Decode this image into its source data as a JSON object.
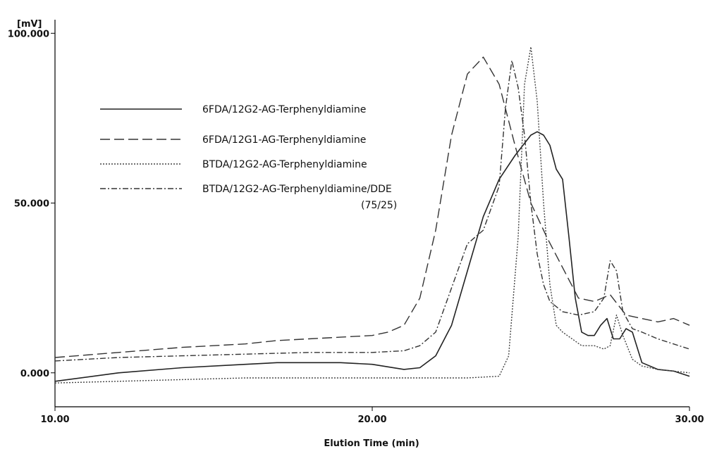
{
  "chart_data": {
    "type": "line",
    "title": "",
    "ylabel": "[mV]",
    "xlabel": "Elution Time (min)",
    "xlim": [
      10,
      30
    ],
    "ylim": [
      -10,
      104
    ],
    "x_ticks": [
      {
        "value": 10,
        "label": "10.00"
      },
      {
        "value": 20,
        "label": "20.00"
      },
      {
        "value": 30,
        "label": "30.00"
      }
    ],
    "y_ticks": [
      {
        "value": 0,
        "label": "0.000"
      },
      {
        "value": 50,
        "label": "50.000"
      },
      {
        "value": 100,
        "label": "100.000"
      }
    ],
    "grid": false,
    "legend_position": "upper-left",
    "series": [
      {
        "name": "6FDA/12G2-AG-Terphenyldiamine",
        "dash": "solid",
        "color": "#222222",
        "x": [
          10,
          12,
          14,
          16,
          17,
          18,
          19,
          20,
          21,
          21.5,
          22,
          22.5,
          23,
          23.5,
          24,
          24.5,
          25,
          25.2,
          25.4,
          25.6,
          25.8,
          26,
          26.2,
          26.4,
          26.6,
          26.8,
          27,
          27.2,
          27.4,
          27.6,
          27.8,
          28,
          28.2,
          28.5,
          29,
          29.5,
          30
        ],
        "y": [
          -2.5,
          0,
          1.5,
          2.5,
          3,
          3,
          3,
          2.5,
          1,
          1.5,
          5,
          14,
          30,
          46,
          57,
          64,
          70,
          71,
          70,
          67,
          60,
          57,
          40,
          22,
          12,
          11,
          11,
          14,
          16,
          10,
          10,
          13,
          12,
          3,
          1,
          0.5,
          -1
        ]
      },
      {
        "name": "6FDA/12G1-AG-Terphenyldiamine",
        "dash": "long-dash",
        "color": "#333333",
        "x": [
          10,
          12,
          14,
          16,
          17,
          18,
          19,
          20,
          20.5,
          21,
          21.5,
          22,
          22.5,
          23,
          23.5,
          24,
          24.5,
          25,
          25.5,
          26,
          26.5,
          27,
          27.5,
          28,
          28.5,
          29,
          29.5,
          30
        ],
        "y": [
          4.5,
          6,
          7.5,
          8.5,
          9.5,
          10,
          10.5,
          11,
          12,
          14,
          22,
          42,
          70,
          88,
          93,
          85,
          67,
          50,
          40,
          31,
          22,
          21,
          23,
          17,
          16,
          15,
          16,
          14
        ]
      },
      {
        "name": "BTDA/12G2-AG-Terphenyldiamine",
        "dash": "dotted",
        "color": "#444444",
        "x": [
          10,
          12,
          14,
          16,
          18,
          20,
          22,
          23,
          24,
          24.3,
          24.6,
          24.8,
          25,
          25.2,
          25.4,
          25.6,
          25.8,
          26,
          26.3,
          26.6,
          27,
          27.3,
          27.5,
          27.7,
          27.9,
          28.2,
          28.5,
          29,
          30
        ],
        "y": [
          -3,
          -2.5,
          -2,
          -1.5,
          -1.5,
          -1.5,
          -1.5,
          -1.5,
          -1,
          5,
          40,
          85,
          96,
          80,
          50,
          26,
          14,
          12,
          10,
          8,
          8,
          7,
          8,
          17,
          11,
          4,
          2,
          1,
          0
        ]
      },
      {
        "name": "BTDA/12G2-AG-Terphenyldiamine/DDE\n(75/25)",
        "dash": "dash-dot",
        "color": "#333333",
        "x": [
          10,
          12,
          14,
          16,
          18,
          20,
          21,
          21.5,
          22,
          22.5,
          23,
          23.5,
          24,
          24.2,
          24.4,
          24.6,
          24.8,
          25,
          25.2,
          25.4,
          25.6,
          26,
          26.5,
          27,
          27.3,
          27.5,
          27.7,
          27.9,
          28.2,
          28.5,
          29,
          30
        ],
        "y": [
          3.5,
          4.5,
          5,
          5.5,
          6,
          6,
          6.5,
          8,
          12,
          25,
          38,
          42,
          55,
          78,
          92,
          84,
          70,
          50,
          35,
          26,
          21,
          18,
          17,
          18,
          22,
          33,
          30,
          18,
          13,
          12,
          10,
          7
        ]
      }
    ]
  }
}
